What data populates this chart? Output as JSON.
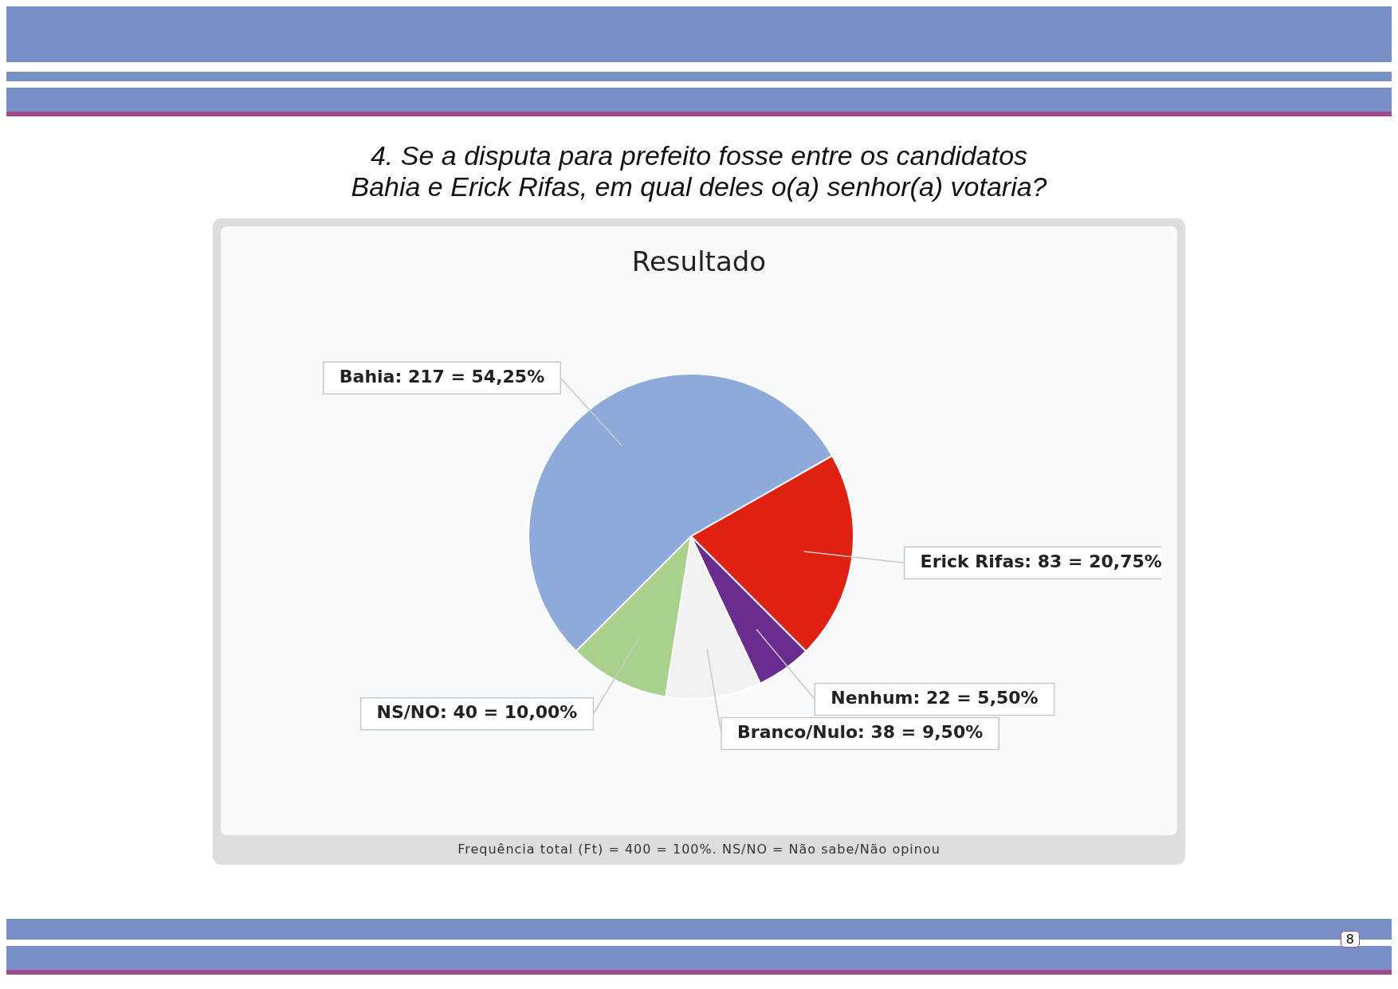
{
  "chart_data": {
    "type": "pie",
    "title": "4. Se a disputa para prefeito fosse entre os candidatos Bahia e Erick Rifas, em qual deles o(a) senhor(a) votaria?",
    "subtitle": "Resultado",
    "categories": [
      "Bahia",
      "Erick Rifas",
      "Nenhum",
      "Branco/Nulo",
      "NS/NO"
    ],
    "values": [
      217,
      83,
      22,
      38,
      40
    ],
    "value_labels": [
      "217 = 54,25%",
      "83 = 20,75%",
      "22 = 5,50%",
      "38 = 9,50%",
      "40 = 10,00%"
    ],
    "colors": [
      "#8eaadb",
      "#e02010",
      "#6a2c8e",
      "#f2f2f2",
      "#a9d18e"
    ],
    "legend": false,
    "annotations": [
      "Frequência total (Ft) = 400 = 100%. NS/NO = Não sabe/Não opinou",
      "8"
    ]
  }
}
